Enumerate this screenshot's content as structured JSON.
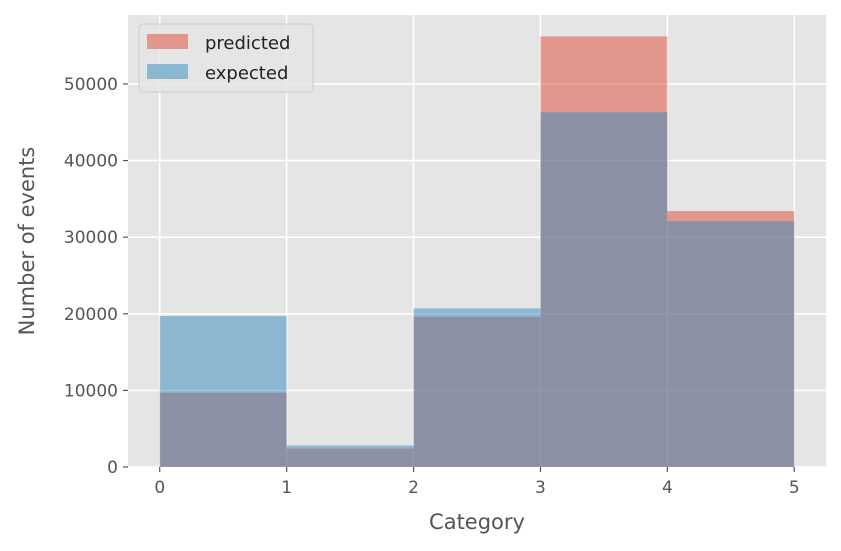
{
  "chart_data": {
    "type": "bar",
    "subtype": "overlaid-histogram",
    "title": "",
    "xlabel": "Category",
    "ylabel": "Number of events",
    "bin_edges": [
      0,
      1,
      2,
      3,
      4,
      5
    ],
    "xlim": [
      -0.25,
      5.25
    ],
    "ylim": [
      0,
      59000
    ],
    "xticks": [
      0,
      1,
      2,
      3,
      4,
      5
    ],
    "yticks": [
      0,
      10000,
      20000,
      30000,
      40000,
      50000
    ],
    "series": [
      {
        "name": "predicted",
        "color": "#E24A33",
        "alpha": 0.5,
        "values": [
          9700,
          2400,
          19600,
          56200,
          33400
        ]
      },
      {
        "name": "expected",
        "color": "#348ABD",
        "alpha": 0.5,
        "values": [
          19700,
          2800,
          20700,
          46300,
          32100
        ]
      }
    ],
    "grid": true,
    "legend_position": "top-left",
    "style": "ggplot",
    "colors": {
      "plot_background": "#E5E5E5",
      "grid": "#FFFFFF",
      "text": "#555555",
      "legend_background": "#E5E5E5",
      "legend_border": "#CCCCCC"
    }
  }
}
